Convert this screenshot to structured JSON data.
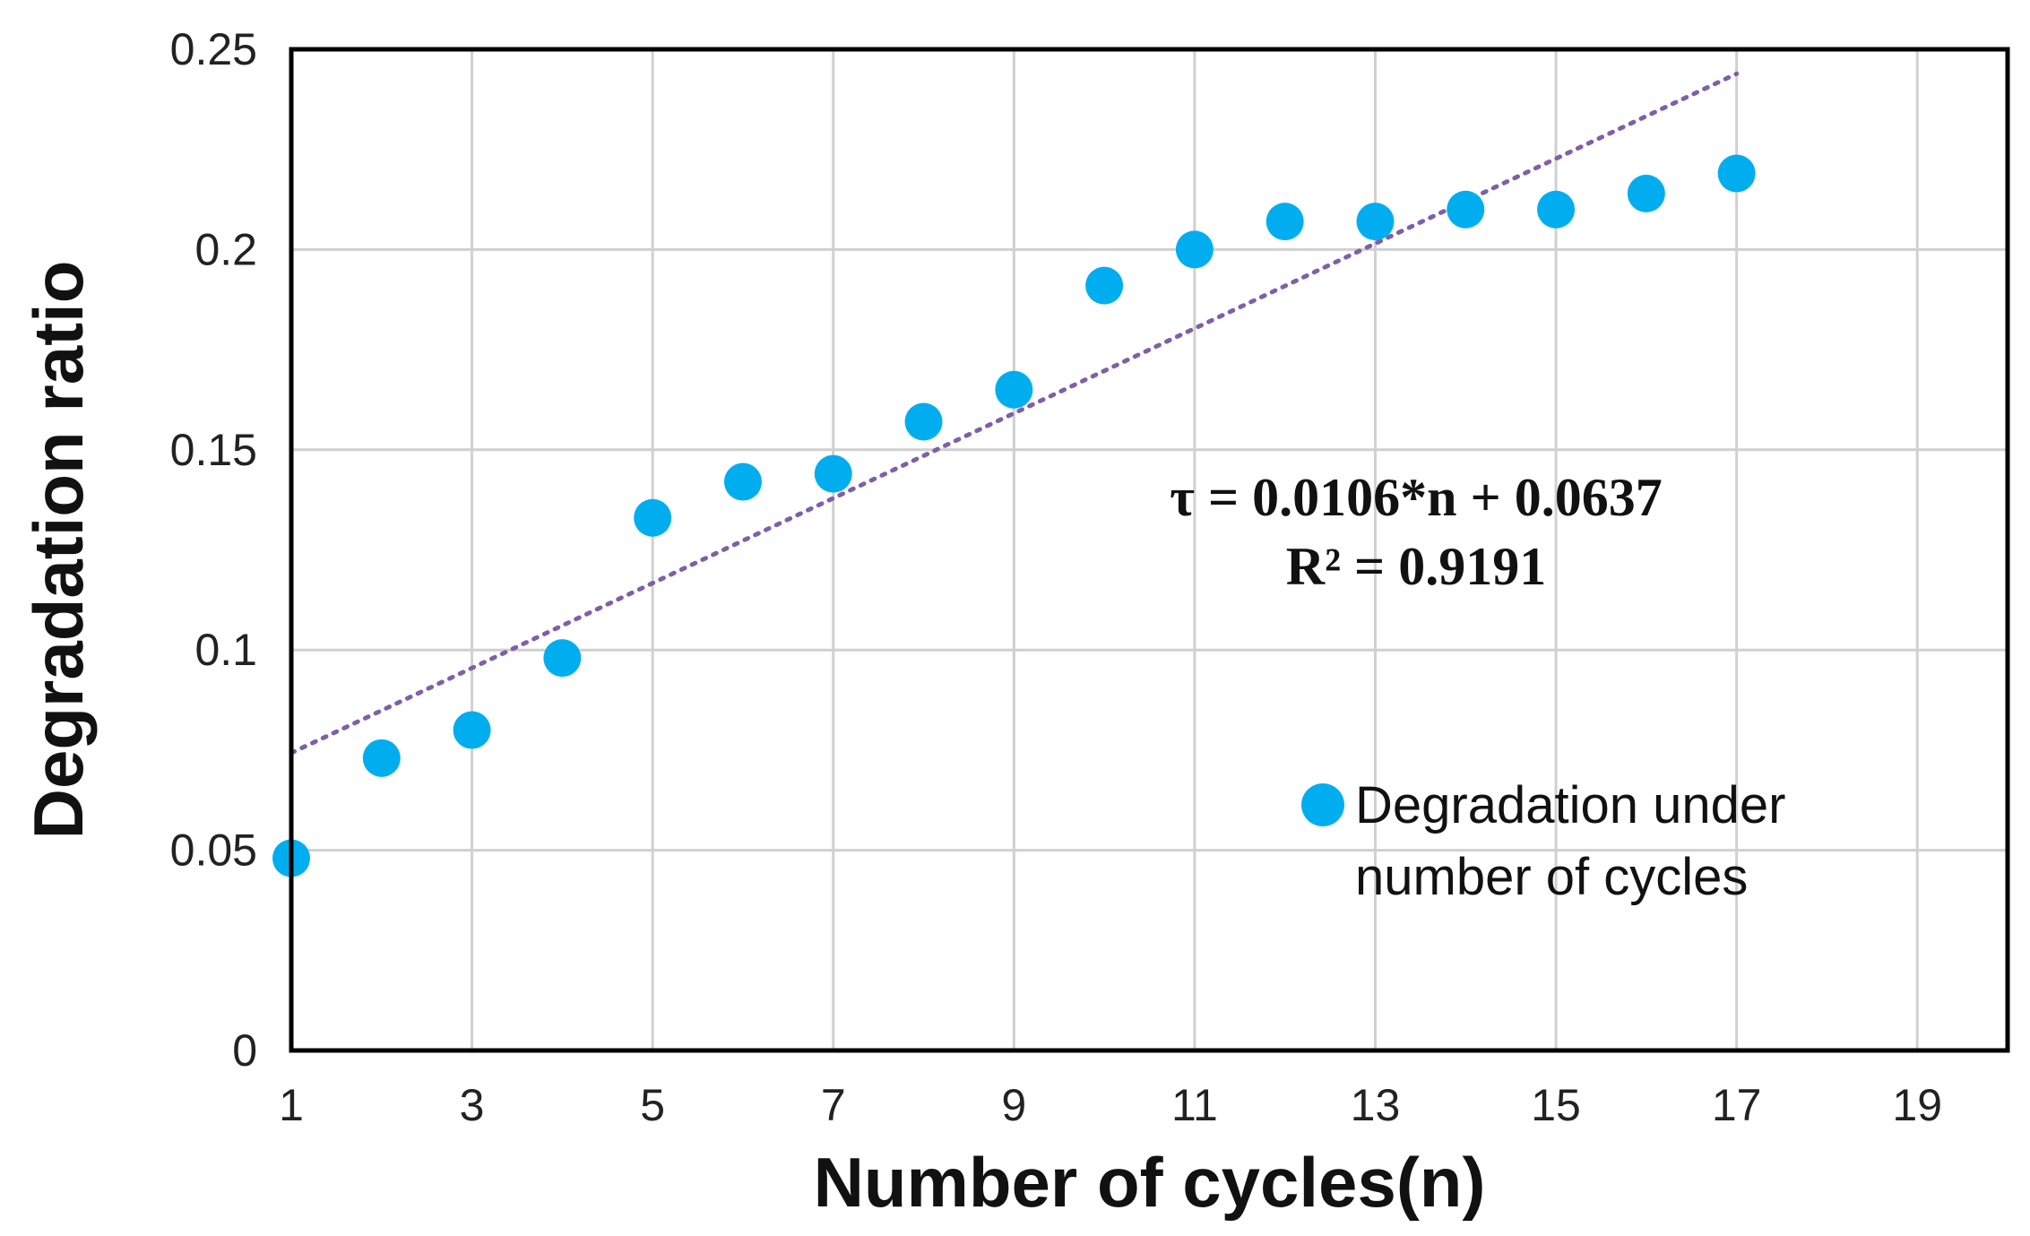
{
  "chart_data": {
    "type": "scatter",
    "title": "",
    "xlabel": "Number of cycles(n)",
    "ylabel": "Degradation ratio",
    "xlim": [
      1,
      20
    ],
    "ylim": [
      0,
      0.25
    ],
    "xticks": [
      1,
      3,
      5,
      7,
      9,
      11,
      13,
      15,
      17,
      19
    ],
    "xtick_labels": [
      "1",
      "3",
      "5",
      "7",
      "9",
      "11",
      "13",
      "15",
      "17",
      "19"
    ],
    "yticks": [
      0,
      0.05,
      0.1,
      0.15,
      0.2,
      0.25
    ],
    "ytick_labels": [
      "0",
      "0.05",
      "0.1",
      "0.15",
      "0.2",
      "0.25"
    ],
    "grid": true,
    "series": [
      {
        "name": "Degradation under number of cycles",
        "color": "#00AEEF",
        "x": [
          1,
          2,
          3,
          4,
          5,
          6,
          7,
          8,
          9,
          10,
          11,
          12,
          13,
          14,
          15,
          16,
          17
        ],
        "y": [
          0.048,
          0.073,
          0.08,
          0.098,
          0.133,
          0.142,
          0.144,
          0.157,
          0.165,
          0.191,
          0.2,
          0.207,
          0.207,
          0.21,
          0.21,
          0.214,
          0.219
        ]
      }
    ],
    "trendline": {
      "type": "linear",
      "style": "dotted",
      "color": "#7F5FA8",
      "slope": 0.0106,
      "intercept": 0.0637,
      "x_range": [
        1,
        17
      ],
      "equation_label": "τ = 0.0106*n + 0.0637",
      "r2_label": "R² = 0.9191"
    },
    "legend": {
      "position": "right-middle",
      "line1": "Degradation under",
      "line2": "number of cycles"
    }
  }
}
